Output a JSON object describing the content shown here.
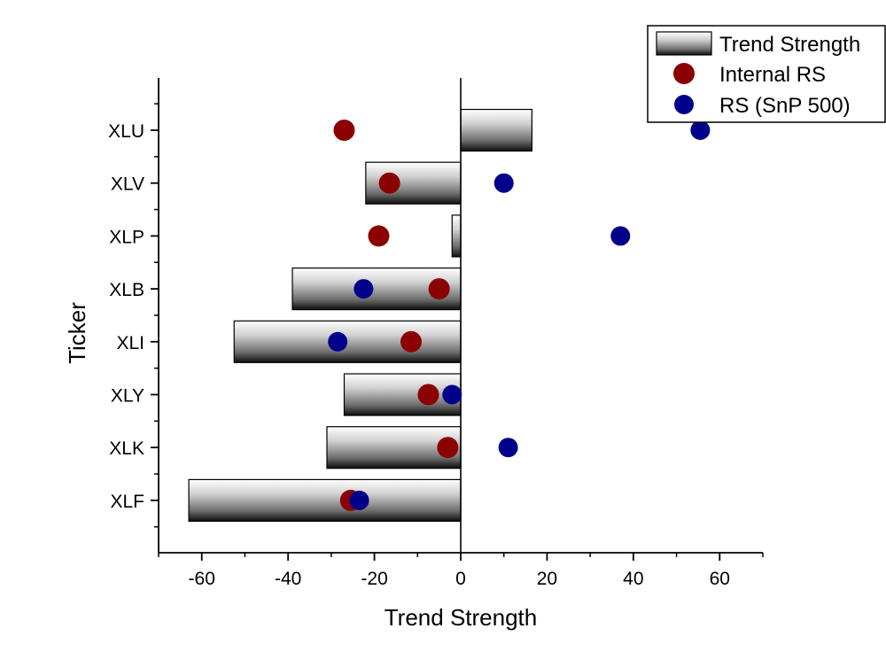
{
  "chart_data": {
    "type": "bar",
    "orientation": "horizontal",
    "xlabel": "Trend Strength",
    "ylabel": "Ticker",
    "xlim": [
      -70,
      70
    ],
    "xticks": [
      -60,
      -40,
      -20,
      0,
      20,
      40,
      60
    ],
    "categories": [
      "XLU",
      "XLV",
      "XLP",
      "XLB",
      "XLI",
      "XLY",
      "XLK",
      "XLF"
    ],
    "grid": false,
    "legend_position": "top-right",
    "series": [
      {
        "name": "Trend Strength",
        "type": "bar",
        "color": "#808080",
        "values": [
          16.5,
          -22,
          -2,
          -39,
          -52.5,
          -27,
          -31,
          -63
        ]
      },
      {
        "name": "Internal RS",
        "type": "scatter",
        "color": "#8B0000",
        "values": [
          -27,
          -16.5,
          -19,
          -5,
          -11.5,
          -7.5,
          -3,
          -25.5
        ]
      },
      {
        "name": "RS (SnP 500)",
        "type": "scatter",
        "color": "#00008B",
        "values": [
          55.5,
          10,
          37,
          -22.5,
          -28.5,
          -2,
          11,
          -23.5
        ]
      }
    ]
  }
}
